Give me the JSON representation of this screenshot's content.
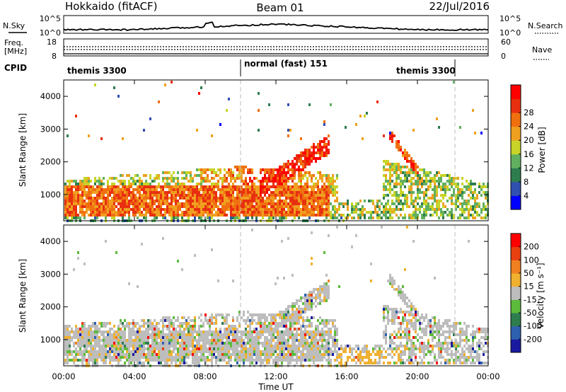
{
  "header": {
    "title": "Hokkaido (fitACF)",
    "beam": "Beam 01",
    "date": "22/Jul/2016"
  },
  "top_panels": {
    "nsky_label": "N.Sky",
    "nsearch_label": "N.Search",
    "nsky_ticks": [
      "10^5",
      "10^0"
    ],
    "nsearch_ticks": [
      "10^5",
      "10^0"
    ],
    "freq_label_line1": "Freq.",
    "freq_label_line2": "[MHz]",
    "freq_ticks": [
      "18",
      "8"
    ],
    "nave_label": "Nave",
    "nave_ticks": [
      "60",
      "0"
    ],
    "cpid_label": "CPID",
    "cpid_segments": [
      "themis 3300",
      "normal (fast) 151",
      "themis 3300"
    ]
  },
  "chart_data": [
    {
      "type": "heatmap",
      "name": "power",
      "ylabel": "Slant Range [km]",
      "xlim_hours": [
        0,
        24
      ],
      "ylim_km": [
        200,
        4500
      ],
      "yticks": [
        "1000",
        "2000",
        "3000",
        "4000"
      ],
      "colorbar": {
        "label": "Power [dB]",
        "ticks": [
          "4",
          "8",
          "12",
          "16",
          "20",
          "24",
          "28"
        ],
        "colors": [
          "#0000ff",
          "#3050b0",
          "#2e7d4f",
          "#60b060",
          "#c8d428",
          "#f0a020",
          "#f07010",
          "#e83010",
          "#ff0000"
        ]
      }
    },
    {
      "type": "heatmap",
      "name": "velocity",
      "ylabel": "Slant Range [km]",
      "xlim_hours": [
        0,
        24
      ],
      "ylim_km": [
        200,
        4500
      ],
      "yticks": [
        "1000",
        "2000",
        "3000",
        "4000"
      ],
      "colorbar": {
        "label": "Velocity [m s⁻¹]",
        "ticks": [
          "200",
          "100",
          "50",
          "15",
          "-15",
          "-50",
          "-100",
          "-200"
        ],
        "colors": [
          "#1a1aa0",
          "#2e60b0",
          "#2e7d4f",
          "#5dbb3c",
          "#bdbdbd",
          "#f0b030",
          "#f08020",
          "#e84010",
          "#ff0000"
        ]
      }
    }
  ],
  "x_axis": {
    "ticks": [
      "00:00",
      "04:00",
      "08:00",
      "12:00",
      "16:00",
      "20:00",
      "00:00"
    ],
    "label": "Time UT"
  }
}
